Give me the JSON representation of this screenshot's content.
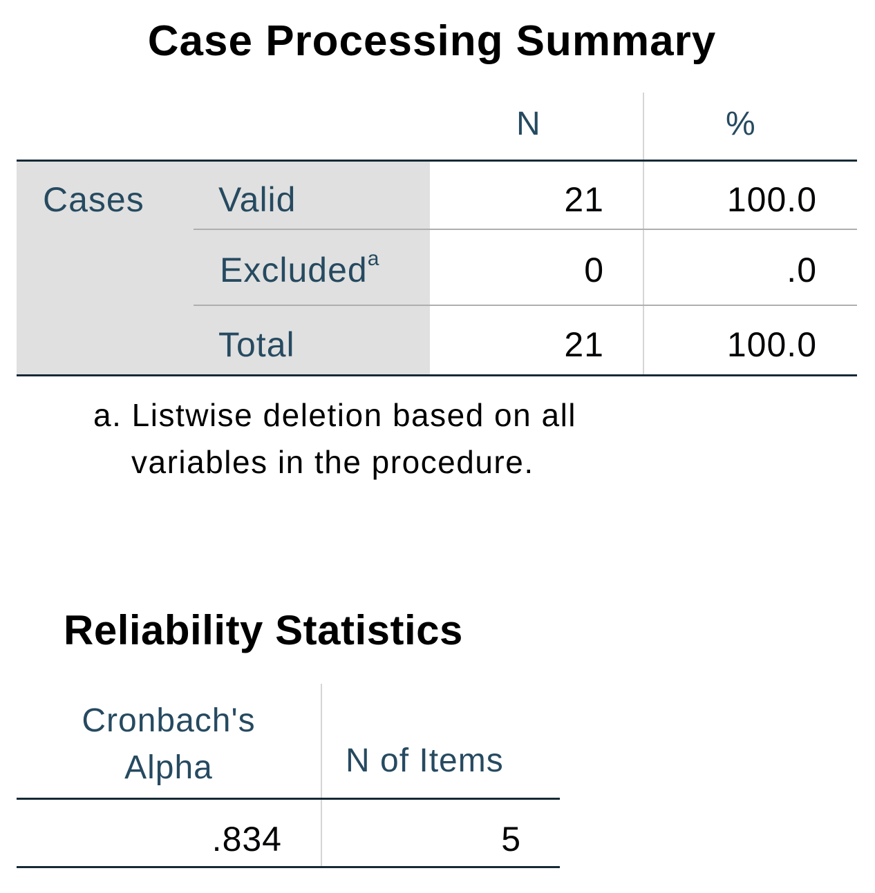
{
  "case_processing_summary": {
    "title": "Case Processing Summary",
    "columns": [
      "N",
      "%"
    ],
    "group_label": "Cases",
    "rows": [
      {
        "label": "Valid",
        "superscript": "",
        "n": "21",
        "percent": "100.0"
      },
      {
        "label": "Excluded",
        "superscript": "a",
        "n": "0",
        "percent": ".0"
      },
      {
        "label": "Total",
        "superscript": "",
        "n": "21",
        "percent": "100.0"
      }
    ],
    "footnote_line1": "a. Listwise deletion based on all",
    "footnote_line2": "variables in the procedure."
  },
  "reliability_statistics": {
    "title": "Reliability Statistics",
    "col1_line1": "Cronbach's",
    "col1_line2": "Alpha",
    "col2": "N of Items",
    "alpha": ".834",
    "n_items": "5"
  },
  "colors": {
    "header_text": "#264a60",
    "value_text": "#010205",
    "row_header_shade": "#e0e0e0",
    "rule_dark": "#152935",
    "rule_light": "#aeaeae"
  }
}
